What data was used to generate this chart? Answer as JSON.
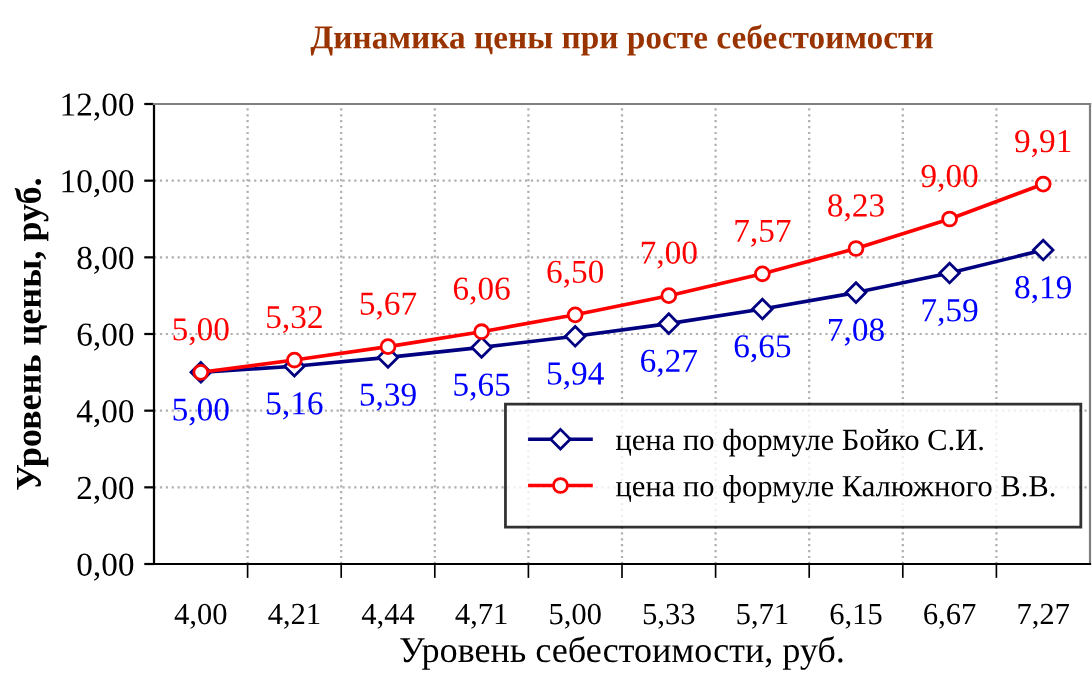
{
  "chart_data": {
    "type": "line",
    "title": "Динамика цены при росте себестоимости",
    "xlabel": "Уровень себестоимости, руб.",
    "ylabel": "Уровень цены, руб.",
    "categories": [
      "4,00",
      "4,21",
      "4,44",
      "4,71",
      "5,00",
      "5,33",
      "5,71",
      "6,15",
      "6,67",
      "7,27"
    ],
    "series": [
      {
        "name": "цена по формуле Бойко С.И.",
        "color": "#000080",
        "marker": "diamond",
        "values": [
          5.0,
          5.16,
          5.39,
          5.65,
          5.94,
          6.27,
          6.65,
          7.08,
          7.59,
          8.19
        ],
        "value_labels": [
          "5,00",
          "5,16",
          "5,39",
          "5,65",
          "5,94",
          "6,27",
          "6,65",
          "7,08",
          "7,59",
          "8,19"
        ]
      },
      {
        "name": "цена по формуле Калюжного В.В.",
        "color": "#ff0000",
        "marker": "circle",
        "values": [
          5.0,
          5.32,
          5.67,
          6.06,
          6.5,
          7.0,
          7.57,
          8.23,
          9.0,
          9.91
        ],
        "value_labels": [
          "5,00",
          "5,32",
          "5,67",
          "6,06",
          "6,50",
          "7,00",
          "7,57",
          "8,23",
          "9,00",
          "9,91"
        ]
      }
    ],
    "ylim": [
      0,
      12
    ],
    "yticks": [
      {
        "value": 0,
        "label": "0,00"
      },
      {
        "value": 2,
        "label": "2,00"
      },
      {
        "value": 4,
        "label": "4,00"
      },
      {
        "value": 6,
        "label": "6,00"
      },
      {
        "value": 8,
        "label": "8,00"
      },
      {
        "value": 10,
        "label": "10,00"
      },
      {
        "value": 12,
        "label": "12,00"
      }
    ],
    "grid": true,
    "legend": "bottom right",
    "line_style": "solid"
  }
}
